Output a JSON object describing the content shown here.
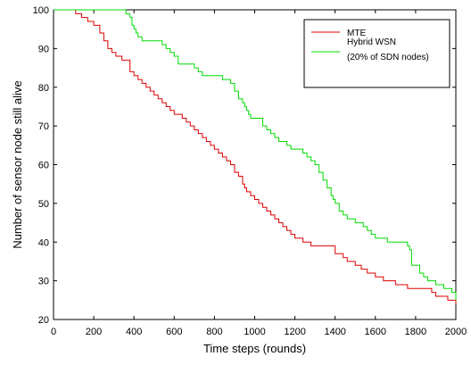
{
  "chart_data": {
    "type": "line",
    "xlabel": "Time steps (rounds)",
    "ylabel": "Number of sensor node still alive",
    "xlim": [
      0,
      2000
    ],
    "ylim": [
      20,
      100
    ],
    "xticks": [
      0,
      200,
      400,
      600,
      800,
      1000,
      1200,
      1400,
      1600,
      1800,
      2000
    ],
    "yticks": [
      20,
      30,
      40,
      50,
      60,
      70,
      80,
      90,
      100
    ],
    "grid": false,
    "legend_position": "top-right",
    "series": [
      {
        "name": "MTE",
        "color": "#e00000",
        "x": [
          0,
          80,
          110,
          140,
          170,
          200,
          230,
          250,
          270,
          290,
          310,
          340,
          380,
          400,
          420,
          440,
          460,
          480,
          500,
          520,
          540,
          560,
          580,
          600,
          640,
          660,
          680,
          700,
          720,
          740,
          760,
          780,
          800,
          820,
          840,
          860,
          880,
          900,
          920,
          940,
          950,
          960,
          980,
          1000,
          1020,
          1040,
          1060,
          1080,
          1100,
          1120,
          1140,
          1160,
          1180,
          1200,
          1220,
          1240,
          1260,
          1280,
          1300,
          1400,
          1440,
          1460,
          1500,
          1530,
          1560,
          1600,
          1620,
          1640,
          1700,
          1720,
          1760,
          1860,
          1880,
          1900,
          1960,
          1980,
          2000
        ],
        "y": [
          100,
          100,
          99,
          98,
          97,
          96,
          94,
          92,
          90,
          89,
          88,
          87,
          84,
          83,
          82,
          81,
          80,
          79,
          78,
          77,
          76,
          75,
          74,
          73,
          72,
          71,
          70,
          69,
          68,
          67,
          66,
          65,
          64,
          63,
          62,
          61,
          60,
          58,
          57,
          55,
          54,
          53,
          52,
          51,
          50,
          49,
          48,
          47,
          46,
          45,
          44,
          43,
          42,
          41,
          41,
          40,
          40,
          39,
          39,
          37,
          36,
          35,
          34,
          33,
          32,
          31,
          31,
          30,
          29,
          29,
          28,
          28,
          27,
          26,
          25,
          25,
          24
        ]
      },
      {
        "name": "Hybrid WSN\n(20% of SDN nodes)",
        "color": "#00dd00",
        "x": [
          0,
          340,
          360,
          380,
          390,
          400,
          410,
          420,
          440,
          460,
          480,
          500,
          540,
          560,
          580,
          600,
          620,
          680,
          700,
          720,
          740,
          780,
          840,
          880,
          900,
          920,
          940,
          950,
          960,
          970,
          980,
          1000,
          1040,
          1060,
          1080,
          1100,
          1120,
          1140,
          1160,
          1180,
          1200,
          1240,
          1260,
          1280,
          1300,
          1320,
          1340,
          1360,
          1380,
          1390,
          1400,
          1420,
          1440,
          1460,
          1480,
          1500,
          1540,
          1560,
          1580,
          1600,
          1640,
          1660,
          1680,
          1700,
          1760,
          1770,
          1780,
          1820,
          1840,
          1860,
          1900,
          1940,
          1980,
          2000
        ],
        "y": [
          100,
          100,
          99,
          98,
          96,
          95,
          94,
          93,
          92,
          92,
          92,
          92,
          91,
          90,
          89,
          88,
          86,
          86,
          85,
          84,
          83,
          83,
          82,
          81,
          79,
          77,
          76,
          75,
          74,
          73,
          72,
          72,
          70,
          69,
          68,
          67,
          66,
          66,
          65,
          64,
          64,
          63,
          62,
          61,
          60,
          58,
          56,
          54,
          52,
          51,
          50,
          48,
          47,
          46,
          46,
          45,
          44,
          43,
          42,
          41,
          41,
          40,
          40,
          40,
          39,
          38,
          34,
          32,
          31,
          30,
          29,
          28,
          27,
          25
        ]
      }
    ]
  }
}
